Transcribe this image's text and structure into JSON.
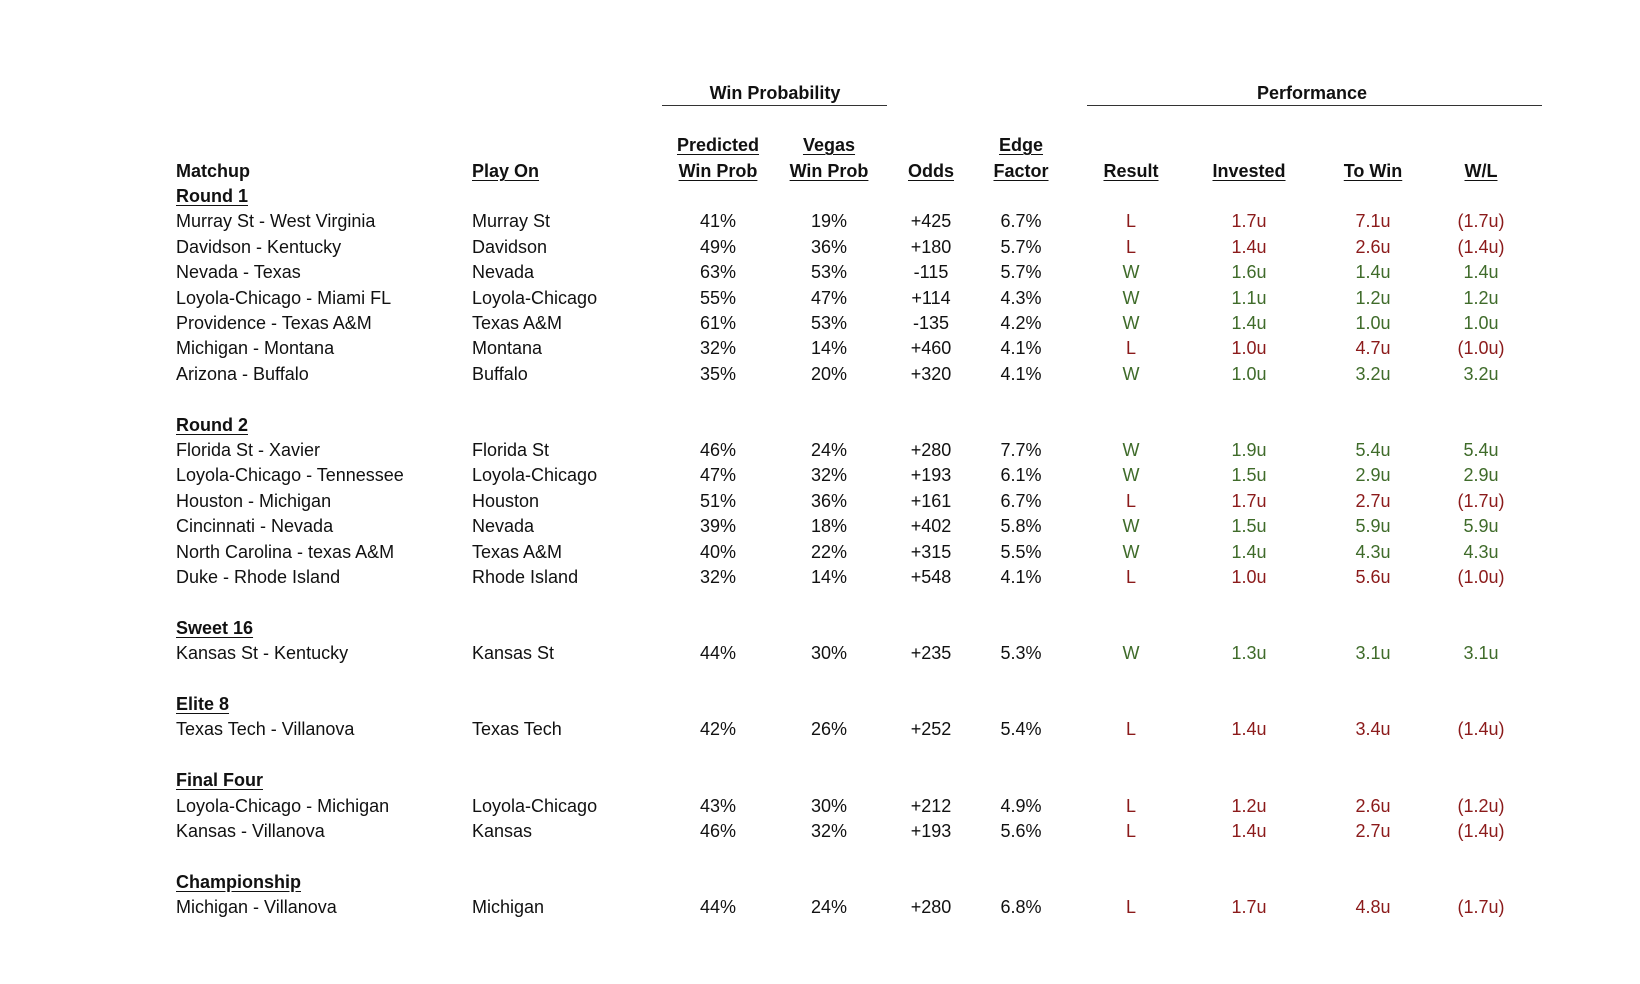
{
  "group_headers": {
    "win_probability": "Win Probability",
    "performance": "Performance"
  },
  "columns": {
    "matchup": "Matchup",
    "play_on": "Play On",
    "predicted_top": "Predicted",
    "predicted_bottom": "Win Prob",
    "vegas_top": "Vegas",
    "vegas_bottom": "Win Prob",
    "odds": "Odds",
    "edge_top": "Edge",
    "edge_bottom": "Factor",
    "result": "Result",
    "invested": "Invested",
    "to_win": "To Win",
    "wl": "W/L"
  },
  "colors": {
    "win": "#3f6b2a",
    "loss": "#8b1a1a"
  },
  "rounds": [
    {
      "name": "Round 1",
      "games": [
        {
          "matchup": "Murray St - West Virginia",
          "play_on": "Murray St",
          "pred": "41%",
          "vegas": "19%",
          "odds": "+425",
          "edge": "6.7%",
          "result": "L",
          "invested": "1.7u",
          "to_win": "7.1u",
          "wl": "(1.7u)"
        },
        {
          "matchup": "Davidson - Kentucky",
          "play_on": "Davidson",
          "pred": "49%",
          "vegas": "36%",
          "odds": "+180",
          "edge": "5.7%",
          "result": "L",
          "invested": "1.4u",
          "to_win": "2.6u",
          "wl": "(1.4u)"
        },
        {
          "matchup": "Nevada - Texas",
          "play_on": "Nevada",
          "pred": "63%",
          "vegas": "53%",
          "odds": "-115",
          "edge": "5.7%",
          "result": "W",
          "invested": "1.6u",
          "to_win": "1.4u",
          "wl": "1.4u"
        },
        {
          "matchup": "Loyola-Chicago - Miami FL",
          "play_on": "Loyola-Chicago",
          "pred": "55%",
          "vegas": "47%",
          "odds": "+114",
          "edge": "4.3%",
          "result": "W",
          "invested": "1.1u",
          "to_win": "1.2u",
          "wl": "1.2u"
        },
        {
          "matchup": "Providence - Texas A&M",
          "play_on": "Texas A&M",
          "pred": "61%",
          "vegas": "53%",
          "odds": "-135",
          "edge": "4.2%",
          "result": "W",
          "invested": "1.4u",
          "to_win": "1.0u",
          "wl": "1.0u"
        },
        {
          "matchup": "Michigan - Montana",
          "play_on": "Montana",
          "pred": "32%",
          "vegas": "14%",
          "odds": "+460",
          "edge": "4.1%",
          "result": "L",
          "invested": "1.0u",
          "to_win": "4.7u",
          "wl": "(1.0u)"
        },
        {
          "matchup": "Arizona - Buffalo",
          "play_on": "Buffalo",
          "pred": "35%",
          "vegas": "20%",
          "odds": "+320",
          "edge": "4.1%",
          "result": "W",
          "invested": "1.0u",
          "to_win": "3.2u",
          "wl": "3.2u"
        }
      ]
    },
    {
      "name": "Round 2",
      "games": [
        {
          "matchup": "Florida St - Xavier",
          "play_on": "Florida St",
          "pred": "46%",
          "vegas": "24%",
          "odds": "+280",
          "edge": "7.7%",
          "result": "W",
          "invested": "1.9u",
          "to_win": "5.4u",
          "wl": "5.4u"
        },
        {
          "matchup": "Loyola-Chicago - Tennessee",
          "play_on": "Loyola-Chicago",
          "pred": "47%",
          "vegas": "32%",
          "odds": "+193",
          "edge": "6.1%",
          "result": "W",
          "invested": "1.5u",
          "to_win": "2.9u",
          "wl": "2.9u"
        },
        {
          "matchup": "Houston - Michigan",
          "play_on": "Houston",
          "pred": "51%",
          "vegas": "36%",
          "odds": "+161",
          "edge": "6.7%",
          "result": "L",
          "invested": "1.7u",
          "to_win": "2.7u",
          "wl": "(1.7u)"
        },
        {
          "matchup": "Cincinnati - Nevada",
          "play_on": "Nevada",
          "pred": "39%",
          "vegas": "18%",
          "odds": "+402",
          "edge": "5.8%",
          "result": "W",
          "invested": "1.5u",
          "to_win": "5.9u",
          "wl": "5.9u"
        },
        {
          "matchup": "North Carolina - texas A&M",
          "play_on": "Texas A&M",
          "pred": "40%",
          "vegas": "22%",
          "odds": "+315",
          "edge": "5.5%",
          "result": "W",
          "invested": "1.4u",
          "to_win": "4.3u",
          "wl": "4.3u"
        },
        {
          "matchup": "Duke - Rhode Island",
          "play_on": "Rhode Island",
          "pred": "32%",
          "vegas": "14%",
          "odds": "+548",
          "edge": "4.1%",
          "result": "L",
          "invested": "1.0u",
          "to_win": "5.6u",
          "wl": "(1.0u)"
        }
      ]
    },
    {
      "name": "Sweet 16",
      "games": [
        {
          "matchup": "Kansas St - Kentucky",
          "play_on": "Kansas St",
          "pred": "44%",
          "vegas": "30%",
          "odds": "+235",
          "edge": "5.3%",
          "result": "W",
          "invested": "1.3u",
          "to_win": "3.1u",
          "wl": "3.1u"
        }
      ]
    },
    {
      "name": "Elite 8",
      "games": [
        {
          "matchup": "Texas Tech - Villanova",
          "play_on": "Texas Tech",
          "pred": "42%",
          "vegas": "26%",
          "odds": "+252",
          "edge": "5.4%",
          "result": "L",
          "invested": "1.4u",
          "to_win": "3.4u",
          "wl": "(1.4u)"
        }
      ]
    },
    {
      "name": "Final Four",
      "games": [
        {
          "matchup": "Loyola-Chicago - Michigan",
          "play_on": "Loyola-Chicago",
          "pred": "43%",
          "vegas": "30%",
          "odds": "+212",
          "edge": "4.9%",
          "result": "L",
          "invested": "1.2u",
          "to_win": "2.6u",
          "wl": "(1.2u)"
        },
        {
          "matchup": "Kansas - Villanova",
          "play_on": "Kansas",
          "pred": "46%",
          "vegas": "32%",
          "odds": "+193",
          "edge": "5.6%",
          "result": "L",
          "invested": "1.4u",
          "to_win": "2.7u",
          "wl": "(1.4u)"
        }
      ]
    },
    {
      "name": "Championship",
      "games": [
        {
          "matchup": "Michigan - Villanova",
          "play_on": "Michigan",
          "pred": "44%",
          "vegas": "24%",
          "odds": "+280",
          "edge": "6.8%",
          "result": "L",
          "invested": "1.7u",
          "to_win": "4.8u",
          "wl": "(1.7u)"
        }
      ]
    }
  ]
}
